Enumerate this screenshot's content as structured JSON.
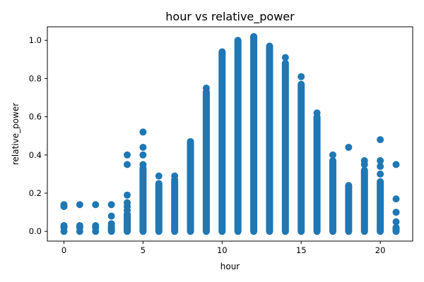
{
  "chart_data": {
    "type": "scatter",
    "title": "hour vs relative_power",
    "xlabel": "hour",
    "ylabel": "relative_power",
    "xlim": [
      -1.05,
      22.05
    ],
    "ylim": [
      -0.051,
      1.071
    ],
    "xticks": [
      0,
      5,
      10,
      15,
      20
    ],
    "yticks": [
      0.0,
      0.2,
      0.4,
      0.6,
      0.8,
      1.0
    ],
    "xtick_labels": [
      "0",
      "5",
      "10",
      "15",
      "20"
    ],
    "ytick_labels": [
      "0.0",
      "0.2",
      "0.4",
      "0.6",
      "0.8",
      "1.0"
    ],
    "grid": false,
    "marker_color": "#1f77b4",
    "series": [
      {
        "columns": [
          {
            "x": 0,
            "range": [
              0.0,
              0.0
            ],
            "extra": [
              0.02,
              0.03,
              0.13,
              0.14
            ]
          },
          {
            "x": 1,
            "range": [
              0.0,
              0.0
            ],
            "extra": [
              0.02,
              0.03,
              0.14
            ]
          },
          {
            "x": 2,
            "range": [
              0.0,
              0.0
            ],
            "extra": [
              0.02,
              0.03,
              0.14
            ]
          },
          {
            "x": 3,
            "range": [
              0.0,
              0.02
            ],
            "extra": [
              0.03,
              0.04,
              0.08,
              0.14
            ]
          },
          {
            "x": 4,
            "range": [
              0.0,
              0.09
            ],
            "extra": [
              0.11,
              0.13,
              0.15,
              0.19,
              0.35,
              0.4
            ]
          },
          {
            "x": 5,
            "range": [
              0.0,
              0.33
            ],
            "extra": [
              0.35,
              0.4,
              0.44,
              0.52
            ]
          },
          {
            "x": 6,
            "range": [
              0.0,
              0.25
            ],
            "extra": [
              0.29
            ]
          },
          {
            "x": 7,
            "range": [
              0.0,
              0.26
            ],
            "extra": [
              0.27,
              0.29
            ]
          },
          {
            "x": 8,
            "range": [
              0.0,
              0.47
            ],
            "extra": []
          },
          {
            "x": 9,
            "range": [
              0.0,
              0.73
            ],
            "extra": [
              0.75
            ]
          },
          {
            "x": 10,
            "range": [
              0.0,
              0.94
            ],
            "extra": []
          },
          {
            "x": 11,
            "range": [
              0.0,
              1.0
            ],
            "extra": []
          },
          {
            "x": 12,
            "range": [
              0.0,
              1.02
            ],
            "extra": []
          },
          {
            "x": 13,
            "range": [
              0.0,
              0.97
            ],
            "extra": []
          },
          {
            "x": 14,
            "range": [
              0.0,
              0.88
            ],
            "extra": [
              0.91
            ]
          },
          {
            "x": 15,
            "range": [
              0.0,
              0.77
            ],
            "extra": [
              0.81
            ]
          },
          {
            "x": 16,
            "range": [
              0.0,
              0.6
            ],
            "extra": [
              0.62
            ]
          },
          {
            "x": 17,
            "range": [
              0.0,
              0.37
            ],
            "extra": [
              0.4
            ]
          },
          {
            "x": 18,
            "range": [
              0.0,
              0.24
            ],
            "extra": [
              0.44
            ]
          },
          {
            "x": 19,
            "range": [
              0.0,
              0.32
            ],
            "extra": [
              0.35,
              0.37
            ]
          },
          {
            "x": 20,
            "range": [
              0.0,
              0.26
            ],
            "extra": [
              0.3,
              0.34,
              0.37,
              0.48
            ]
          },
          {
            "x": 21,
            "range": [
              0.0,
              0.02
            ],
            "extra": [
              0.05,
              0.1,
              0.17,
              0.35
            ]
          }
        ]
      }
    ]
  }
}
